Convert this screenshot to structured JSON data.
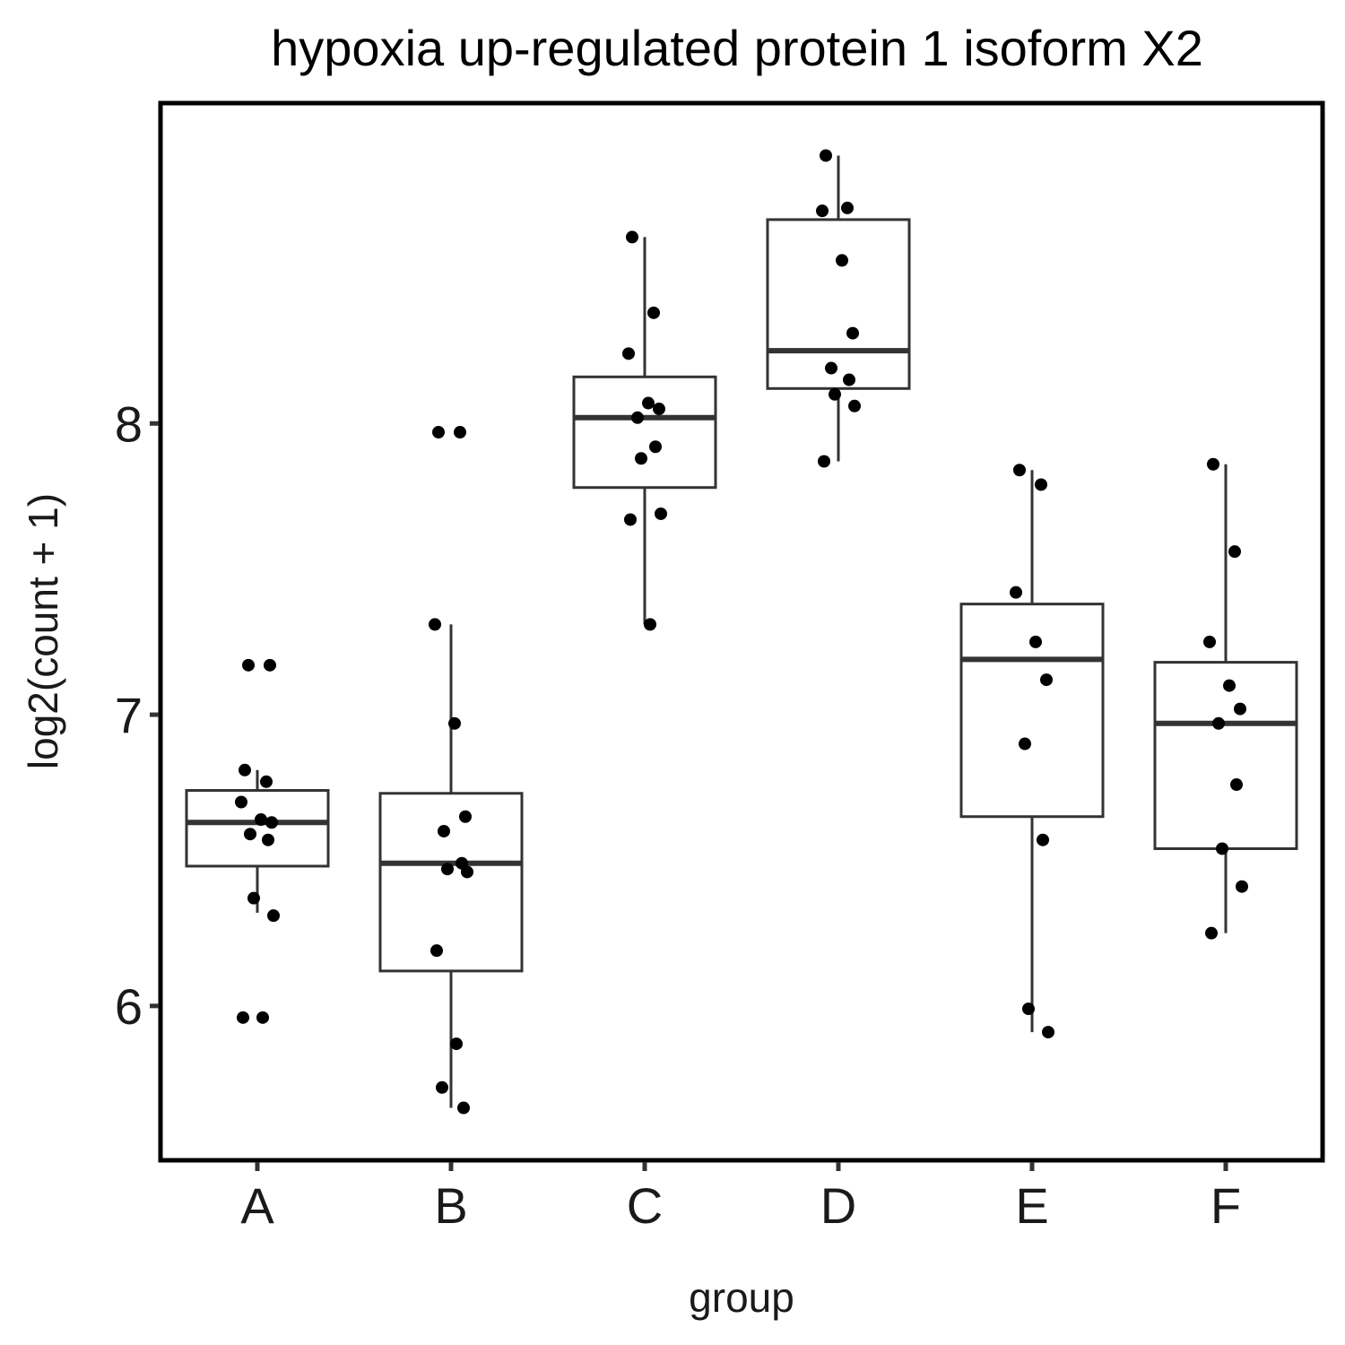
{
  "chart_data": {
    "type": "box",
    "title": "hypoxia up-regulated protein 1 isoform X2",
    "xlabel": "group",
    "ylabel": "log2(count + 1)",
    "ylim": [
      5.47,
      9.1
    ],
    "yticks": [
      6,
      7,
      8
    ],
    "grid": false,
    "categories": [
      "A",
      "B",
      "C",
      "D",
      "E",
      "F"
    ],
    "boxes": [
      {
        "group": "A",
        "whisker_low": 6.32,
        "q1": 6.48,
        "median": 6.63,
        "q3": 6.74,
        "whisker_high": 6.81
      },
      {
        "group": "B",
        "whisker_low": 5.65,
        "q1": 6.12,
        "median": 6.49,
        "q3": 6.73,
        "whisker_high": 7.31
      },
      {
        "group": "C",
        "whisker_low": 7.31,
        "q1": 7.78,
        "median": 8.02,
        "q3": 8.16,
        "whisker_high": 8.64
      },
      {
        "group": "D",
        "whisker_low": 7.87,
        "q1": 8.12,
        "median": 8.25,
        "q3": 8.7,
        "whisker_high": 8.92
      },
      {
        "group": "E",
        "whisker_low": 5.91,
        "q1": 6.65,
        "median": 7.19,
        "q3": 7.38,
        "whisker_high": 7.84
      },
      {
        "group": "F",
        "whisker_low": 6.25,
        "q1": 6.54,
        "median": 6.97,
        "q3": 7.18,
        "whisker_high": 7.86
      }
    ],
    "points": [
      {
        "group": "A",
        "values": [
          6.81,
          6.77,
          6.7,
          6.64,
          6.63,
          6.59,
          6.57,
          6.37,
          6.31,
          5.96,
          5.96,
          7.17,
          7.17
        ]
      },
      {
        "group": "B",
        "values": [
          7.97,
          7.97,
          7.31,
          6.97,
          6.65,
          6.6,
          6.49,
          6.47,
          6.46,
          6.19,
          5.87,
          5.72,
          5.65
        ]
      },
      {
        "group": "C",
        "values": [
          8.64,
          8.38,
          8.24,
          8.07,
          8.05,
          8.02,
          7.92,
          7.88,
          7.69,
          7.67,
          7.31
        ]
      },
      {
        "group": "D",
        "values": [
          8.92,
          8.74,
          8.73,
          8.56,
          8.31,
          8.19,
          8.15,
          8.1,
          8.06,
          7.87
        ]
      },
      {
        "group": "E",
        "values": [
          7.84,
          7.79,
          7.42,
          7.25,
          7.12,
          6.9,
          6.57,
          5.99,
          5.91
        ]
      },
      {
        "group": "F",
        "values": [
          7.86,
          7.56,
          7.25,
          7.1,
          7.02,
          6.97,
          6.76,
          6.54,
          6.41,
          6.25
        ]
      }
    ],
    "colors": {
      "box_stroke": "#333333",
      "box_fill": "#ffffff",
      "point": "#000000",
      "panel_border": "#000000"
    }
  }
}
